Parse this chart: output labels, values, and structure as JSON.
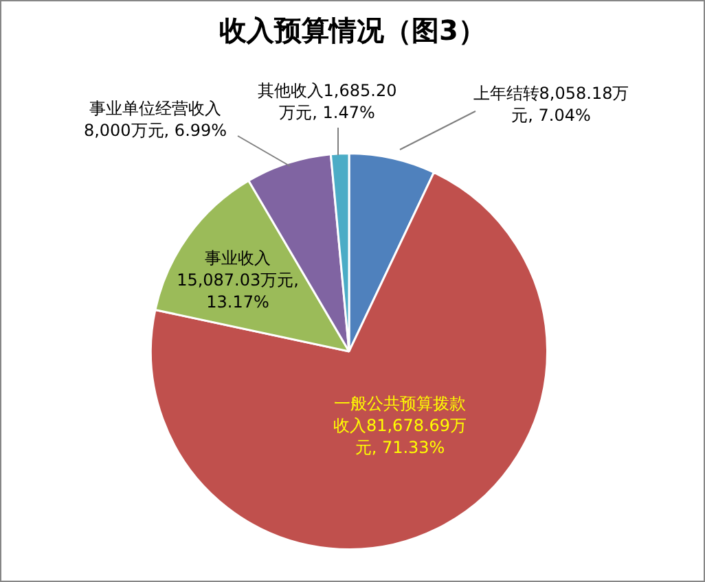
{
  "chart_data": {
    "type": "pie",
    "title": "收入预算情况（图3）",
    "categories": [
      "上年结转",
      "一般公共预算拨款收入",
      "事业收入",
      "事业单位经营收入",
      "其他收入"
    ],
    "values": [
      8058.18,
      81678.69,
      15087.03,
      8000,
      1685.2
    ],
    "value_labels": [
      "8,058.18万元, 7.04%",
      "81,678.69万元, 71.33%",
      "15,087.03万元, 13.17%",
      "8,000万元, 6.99%",
      "1,685.20万元, 1.47%"
    ],
    "colors": [
      "#4f81bd",
      "#c0504d",
      "#9bbb59",
      "#8064a2",
      "#4bacc6"
    ],
    "legend": false
  }
}
